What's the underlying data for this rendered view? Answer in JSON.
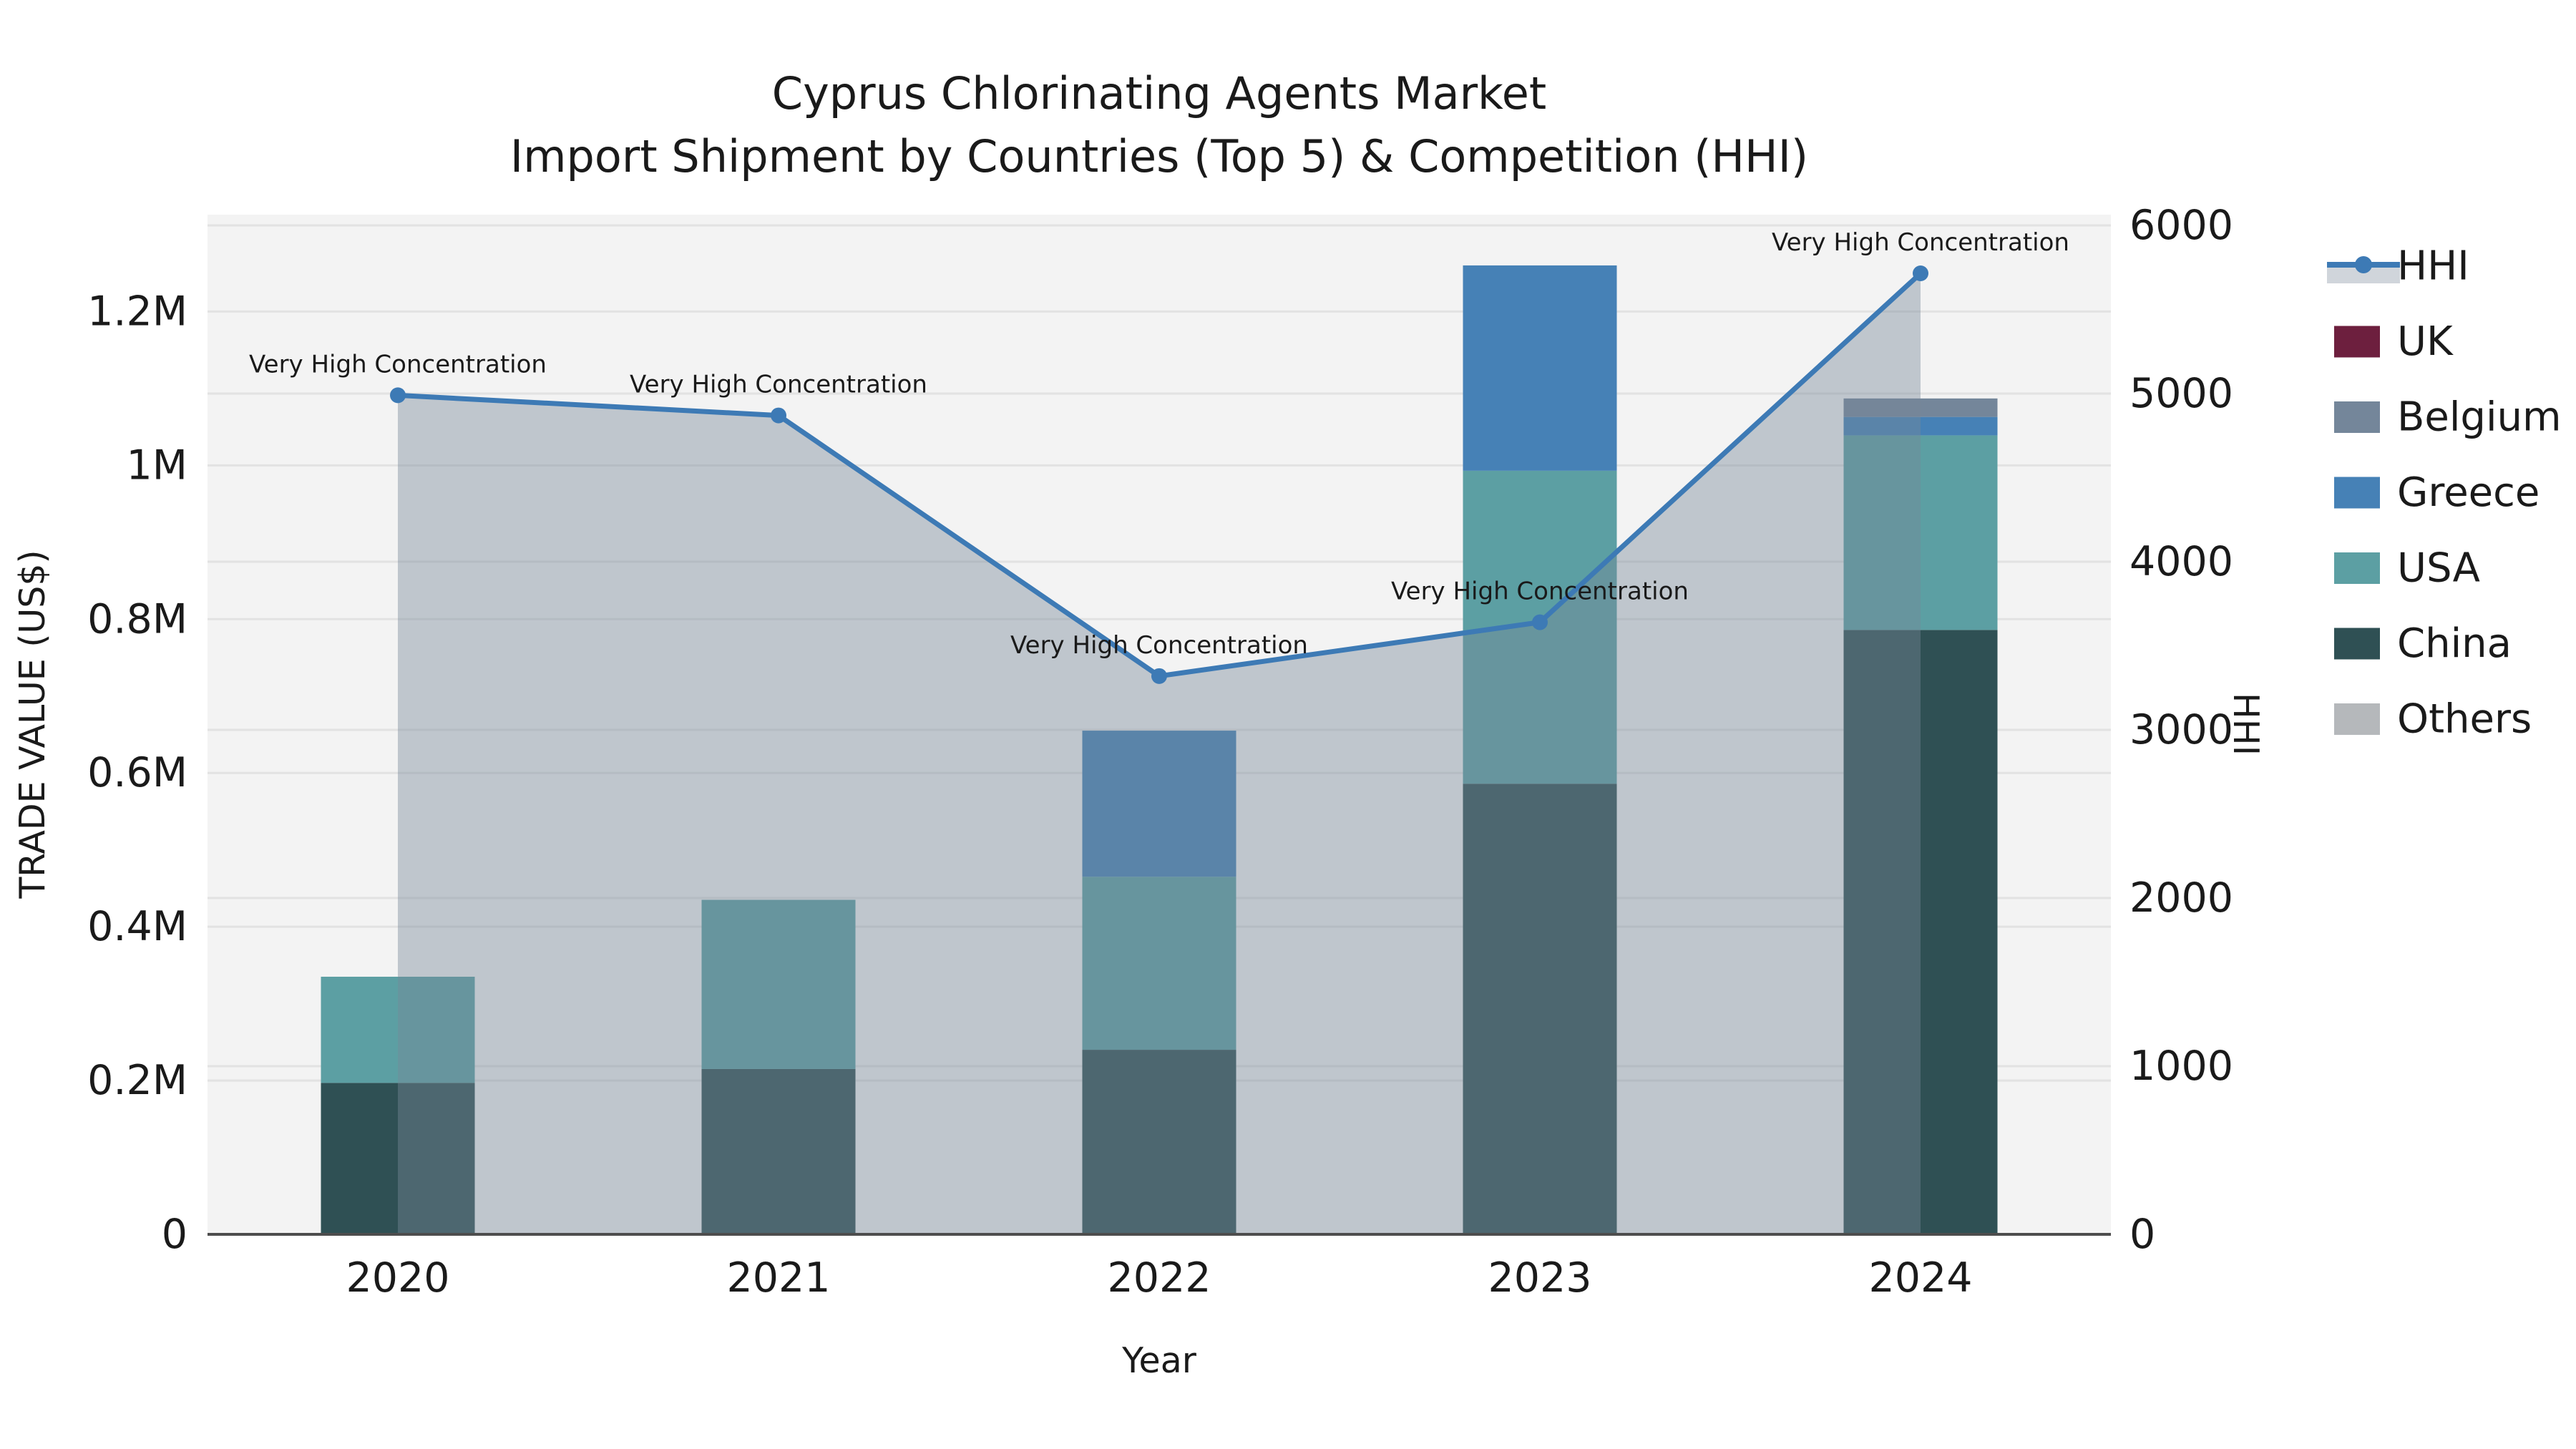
{
  "title": {
    "line1": "Cyprus Chlorinating Agents Market",
    "line2": "Import Shipment by Countries (Top 5) & Competition (HHI)"
  },
  "axes": {
    "x": {
      "label": "Year",
      "tick_labels": [
        "2020",
        "2021",
        "2022",
        "2023",
        "2024"
      ]
    },
    "y_left": {
      "label": "TRADE VALUE (US$)",
      "tick_labels": [
        "0",
        "0.2M",
        "0.4M",
        "0.6M",
        "0.8M",
        "1M",
        "1.2M"
      ],
      "tick_values_m": [
        0,
        0.2,
        0.4,
        0.6,
        0.8,
        1.0,
        1.2
      ],
      "range_m": [
        0,
        1.326
      ]
    },
    "y_right": {
      "label": "HHI",
      "tick_labels": [
        "0",
        "1000",
        "2000",
        "3000",
        "4000",
        "5000",
        "6000"
      ],
      "tick_values": [
        0,
        1000,
        2000,
        3000,
        4000,
        5000,
        6000
      ],
      "range": [
        0,
        6064
      ]
    }
  },
  "legend": [
    {
      "label": "HHI",
      "type": "line-marker",
      "color": "#3d7ab5"
    },
    {
      "label": "UK",
      "type": "patch",
      "color": "#6d1f3e"
    },
    {
      "label": "Belgium",
      "type": "patch",
      "color": "#74869a"
    },
    {
      "label": "Greece",
      "type": "patch",
      "color": "#4681b6"
    },
    {
      "label": "USA",
      "type": "patch",
      "color": "#5c9fa3"
    },
    {
      "label": "China",
      "type": "patch",
      "color": "#2f5054"
    },
    {
      "label": "Others",
      "type": "patch",
      "color": "#b5b8bb"
    }
  ],
  "chart_data": {
    "type": "combo: stacked bar (left axis) + line with area fill (right axis)",
    "categories": [
      "2020",
      "2021",
      "2022",
      "2023",
      "2024"
    ],
    "bar_unit": "million US$",
    "stack_order_bottom_to_top": [
      "China",
      "USA",
      "Greece",
      "Belgium",
      "UK",
      "Others"
    ],
    "series": [
      {
        "name": "China",
        "color": "#2f5054",
        "values": [
          0.197,
          0.215,
          0.24,
          0.586,
          0.786
        ]
      },
      {
        "name": "USA",
        "color": "#5c9fa3",
        "values": [
          0.138,
          0.22,
          0.225,
          0.407,
          0.253
        ]
      },
      {
        "name": "Greece",
        "color": "#4681b6",
        "values": [
          0,
          0,
          0.19,
          0.267,
          0.024
        ]
      },
      {
        "name": "Belgium",
        "color": "#74869a",
        "values": [
          0,
          0,
          0,
          0,
          0.024
        ]
      },
      {
        "name": "UK",
        "color": "#6d1f3e",
        "values": [
          0,
          0,
          0,
          0,
          0
        ]
      },
      {
        "name": "Others",
        "color": "#b5b8bb",
        "values": [
          0,
          0,
          0,
          0,
          0
        ]
      }
    ],
    "bar_totals_m": [
      0.335,
      0.435,
      0.655,
      1.26,
      1.087
    ],
    "line": {
      "name": "HHI",
      "color": "#3d7ab5",
      "values": [
        4990,
        4870,
        3320,
        3640,
        5715
      ],
      "area_color": "#778899",
      "area_opacity": 0.42
    },
    "annotations": [
      {
        "category": "2020",
        "text": "Very High Concentration"
      },
      {
        "category": "2021",
        "text": "Very High Concentration"
      },
      {
        "category": "2022",
        "text": "Very High Concentration"
      },
      {
        "category": "2023",
        "text": "Very High Concentration"
      },
      {
        "category": "2024",
        "text": "Very High Concentration"
      }
    ],
    "style": {
      "plot_background": "#f3f3f3",
      "grid_color": "#e2e2e2",
      "axis_line_color": "#4d4d4d",
      "text_color": "#1a1a1a",
      "grid": "on",
      "legend_position": "right"
    }
  }
}
